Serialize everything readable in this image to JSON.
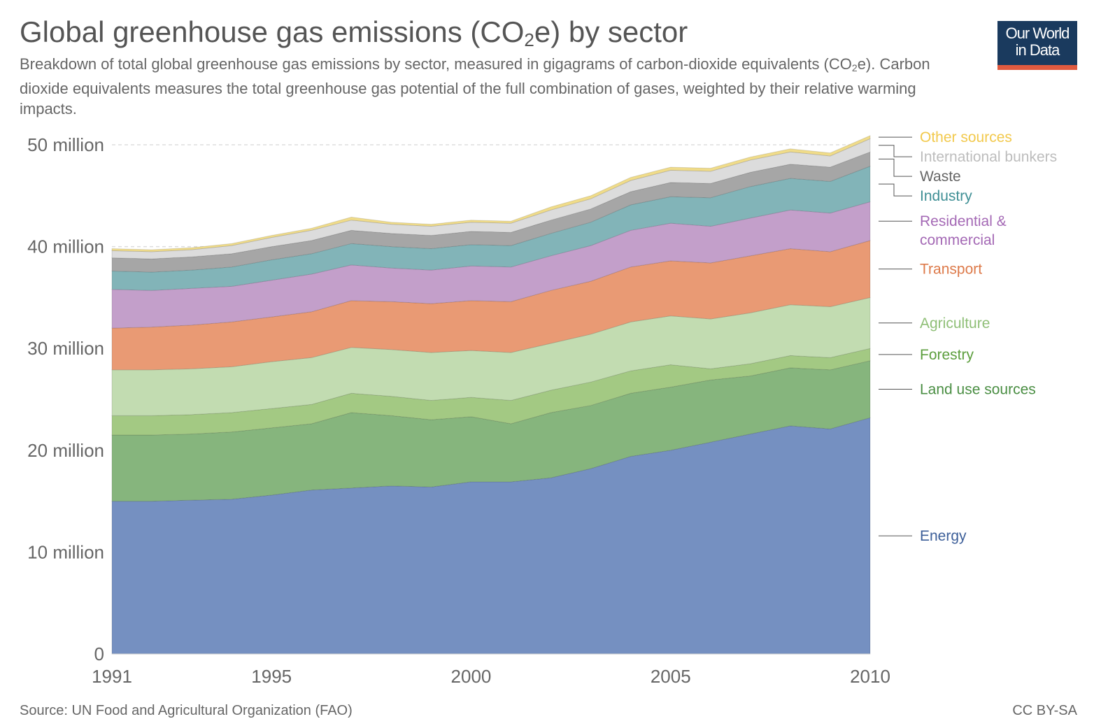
{
  "header": {
    "title_main": "Global greenhouse gas emissions (CO",
    "title_sub": "2",
    "title_end": "e) by sector",
    "subtitle_part1": "Breakdown of total global greenhouse gas emissions by sector, measured in gigagrams of carbon-dioxide equivalents (CO",
    "subtitle_sub": "2",
    "subtitle_part2": "e). Carbon dioxide equivalents measures the total greenhouse gas potential of the full combination of gases, weighted by their relative warming impacts.",
    "logo_line1": "Our World",
    "logo_line2": "in Data"
  },
  "footer": {
    "source": "Source: UN Food and Agricultural Organization (FAO)",
    "license": "CC BY-SA"
  },
  "colors": {
    "logo_bg": "#1a3a5e",
    "logo_accent": "#e05a3f"
  },
  "chart_data": {
    "type": "area",
    "stacked": true,
    "x": [
      1991,
      1992,
      1993,
      1994,
      1995,
      1996,
      1997,
      1998,
      1999,
      2000,
      2001,
      2002,
      2003,
      2004,
      2005,
      2006,
      2007,
      2008,
      2009,
      2010
    ],
    "xticks": [
      "1991",
      "1995",
      "2000",
      "2005",
      "2010"
    ],
    "xtick_values": [
      1991,
      1995,
      2000,
      2005,
      2010
    ],
    "yticks": [
      "0",
      "10 million",
      "20 million",
      "30 million",
      "40 million",
      "50 million"
    ],
    "ytick_values": [
      0,
      10000000,
      20000000,
      30000000,
      40000000,
      50000000
    ],
    "ylim": [
      0,
      50000000
    ],
    "grid": true,
    "legend_placement": "right",
    "series": [
      {
        "name": "Energy",
        "color": "#7590c1",
        "label_color": "#3d5f99",
        "values": [
          15000000,
          15000000,
          15100000,
          15200000,
          15600000,
          16100000,
          16300000,
          16500000,
          16400000,
          16900000,
          16900000,
          17300000,
          18200000,
          19400000,
          20000000,
          20800000,
          21600000,
          22400000,
          22100000,
          23200000
        ]
      },
      {
        "name": "Land use sources",
        "color": "#86b57d",
        "label_color": "#4a8e43",
        "values": [
          6500000,
          6500000,
          6500000,
          6600000,
          6600000,
          6500000,
          7400000,
          6900000,
          6600000,
          6400000,
          5700000,
          6400000,
          6200000,
          6200000,
          6200000,
          6100000,
          5700000,
          5700000,
          5800000,
          5600000
        ]
      },
      {
        "name": "Forestry",
        "color": "#a3c983",
        "label_color": "#5c9e3d",
        "values": [
          1900000,
          1900000,
          1900000,
          1900000,
          1900000,
          1900000,
          1900000,
          1900000,
          1900000,
          1900000,
          2300000,
          2200000,
          2300000,
          2200000,
          2200000,
          1100000,
          1200000,
          1200000,
          1200000,
          1200000
        ]
      },
      {
        "name": "Agriculture",
        "color": "#c2dcb1",
        "label_color": "#8fbf77",
        "values": [
          4500000,
          4500000,
          4500000,
          4500000,
          4600000,
          4600000,
          4500000,
          4600000,
          4700000,
          4600000,
          4700000,
          4600000,
          4700000,
          4800000,
          4800000,
          4900000,
          5000000,
          5000000,
          5000000,
          5000000
        ]
      },
      {
        "name": "Transport",
        "color": "#e99a74",
        "label_color": "#dd7a4a",
        "values": [
          4100000,
          4200000,
          4300000,
          4400000,
          4400000,
          4500000,
          4600000,
          4700000,
          4800000,
          4900000,
          5000000,
          5200000,
          5200000,
          5400000,
          5400000,
          5500000,
          5600000,
          5500000,
          5400000,
          5600000
        ]
      },
      {
        "name": "Residential & commercial",
        "color": "#c39fca",
        "label_color": "#a469b5",
        "values": [
          3800000,
          3600000,
          3600000,
          3500000,
          3600000,
          3700000,
          3500000,
          3300000,
          3300000,
          3400000,
          3400000,
          3400000,
          3500000,
          3600000,
          3700000,
          3600000,
          3700000,
          3800000,
          3800000,
          3800000
        ]
      },
      {
        "name": "Industry",
        "color": "#82b4b8",
        "label_color": "#3f8f95",
        "values": [
          1800000,
          1800000,
          1800000,
          1900000,
          2000000,
          2000000,
          2100000,
          2100000,
          2100000,
          2100000,
          2100000,
          2200000,
          2300000,
          2500000,
          2600000,
          2800000,
          3100000,
          3100000,
          3100000,
          3500000
        ]
      },
      {
        "name": "Waste",
        "color": "#a6a6a6",
        "label_color": "#666666",
        "values": [
          1300000,
          1300000,
          1300000,
          1300000,
          1300000,
          1300000,
          1300000,
          1300000,
          1300000,
          1300000,
          1300000,
          1300000,
          1300000,
          1300000,
          1400000,
          1400000,
          1400000,
          1400000,
          1400000,
          1400000
        ]
      },
      {
        "name": "International bunkers",
        "color": "#dcdcdc",
        "label_color": "#bdbdbd",
        "values": [
          700000,
          700000,
          700000,
          800000,
          900000,
          1000000,
          1000000,
          900000,
          900000,
          900000,
          900000,
          1000000,
          1000000,
          1100000,
          1200000,
          1200000,
          1200000,
          1200000,
          1100000,
          1300000
        ]
      },
      {
        "name": "Other sources",
        "color": "#f0dc8a",
        "label_color": "#f2c94c",
        "values": [
          200000,
          200000,
          200000,
          200000,
          200000,
          200000,
          300000,
          200000,
          200000,
          200000,
          200000,
          300000,
          300000,
          300000,
          300000,
          300000,
          300000,
          300000,
          300000,
          300000
        ]
      }
    ],
    "legend_lines": [
      [
        "Other sources"
      ],
      [
        "International bunkers"
      ],
      [
        "Waste"
      ],
      [
        "Industry"
      ],
      [
        "Residential &",
        "commercial"
      ],
      [
        "Transport"
      ],
      [
        "Agriculture"
      ],
      [
        "Forestry"
      ],
      [
        "Land use sources"
      ],
      [
        "Energy"
      ]
    ]
  }
}
